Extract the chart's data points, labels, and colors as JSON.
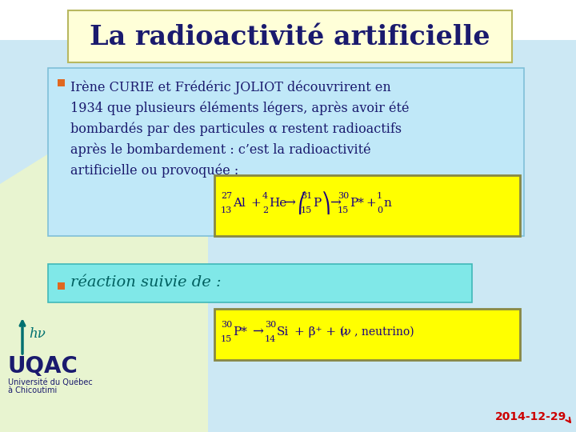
{
  "title_text": "La radioactivité artificielle",
  "title_bg": "#fffff0",
  "title_border": "#b8b860",
  "title_color": "#1a1a6e",
  "slide_bg": "#ffffff",
  "main_bg": "#c8e8f8",
  "bullet_box1_bg": "#c0e8f8",
  "bullet_box1_border": "#80c0d8",
  "bullet_box2_bg": "#80e8e8",
  "bullet_box2_border": "#40b8b8",
  "bullet_marker_color": "#e06820",
  "bullet_color": "#1a1a6e",
  "eq_bg": "#ffff00",
  "eq_border": "#888844",
  "eq_color": "#1a0080",
  "date_text": "2014-12-29",
  "date_color": "#cc0000",
  "logo_color": "#006060",
  "logo_uqac_color": "#1a1a6e",
  "deco_bg": "#e8f4d0",
  "bullet1_lines": [
    "Irène CURIE et Frédéric JOLIOT découvrirent en",
    "1934 que plusieurs éléments légers, après avoir été",
    "bombardés par des particules α restent radioactifs",
    "après le bombardement : c’est la radioactivité",
    "artificielle ou provoquée :"
  ],
  "bullet2_text": "réaction suivie de :"
}
